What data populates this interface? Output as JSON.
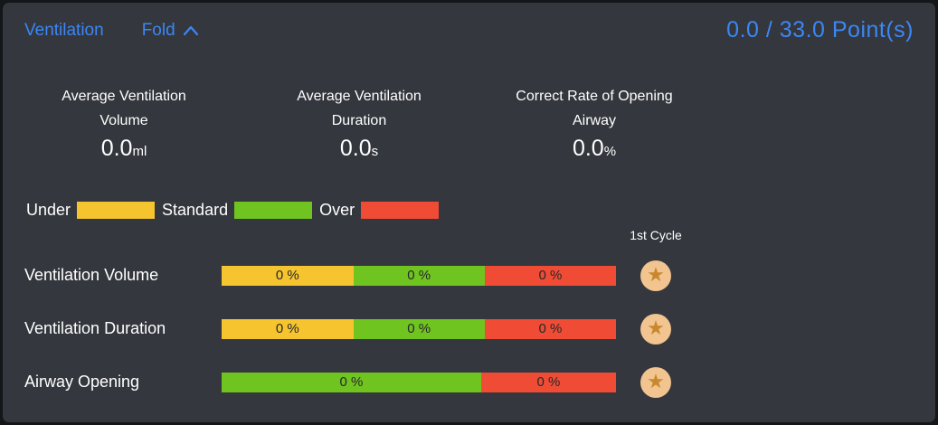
{
  "colors": {
    "accent_blue": "#3B87F5",
    "panel_background": "#34373D",
    "under_yellow": "#F5C42F",
    "standard_green": "#70C41F",
    "over_red": "#F04C35",
    "badge_circle": "#F2C48F",
    "badge_star": "#C8882E"
  },
  "header": {
    "title": "Ventilation",
    "fold_label": "Fold",
    "points": "0.0 / 33.0 Point(s)"
  },
  "stats": [
    {
      "label_line1": "Average Ventilation",
      "label_line2": "Volume",
      "value": "0.0",
      "unit": "ml"
    },
    {
      "label_line1": "Average Ventilation",
      "label_line2": "Duration",
      "value": "0.0",
      "unit": "s"
    },
    {
      "label_line1": "Correct Rate of Opening",
      "label_line2": "Airway",
      "value": "0.0",
      "unit": "%"
    }
  ],
  "legend": [
    {
      "label": "Under",
      "color": "#F5C42F"
    },
    {
      "label": "Standard",
      "color": "#70C41F"
    },
    {
      "label": "Over",
      "color": "#F04C35"
    }
  ],
  "cycle_header": "1st Cycle",
  "rows": [
    {
      "label": "Ventilation Volume",
      "segments": [
        {
          "zone": "under",
          "label": "0 %",
          "color": "#F5C42F",
          "width_pct": 33.4
        },
        {
          "zone": "standard",
          "label": "0 %",
          "color": "#70C41F",
          "width_pct": 33.3
        },
        {
          "zone": "over",
          "label": "0 %",
          "color": "#F04C35",
          "width_pct": 33.3
        }
      ]
    },
    {
      "label": "Ventilation Duration",
      "segments": [
        {
          "zone": "under",
          "label": "0 %",
          "color": "#F5C42F",
          "width_pct": 33.4
        },
        {
          "zone": "standard",
          "label": "0 %",
          "color": "#70C41F",
          "width_pct": 33.3
        },
        {
          "zone": "over",
          "label": "0 %",
          "color": "#F04C35",
          "width_pct": 33.3
        }
      ]
    },
    {
      "label": "Airway Opening",
      "segments": [
        {
          "zone": "standard",
          "label": "0 %",
          "color": "#70C41F",
          "width_pct": 65.8
        },
        {
          "zone": "over",
          "label": "0 %",
          "color": "#F04C35",
          "width_pct": 34.2
        }
      ]
    }
  ],
  "chart_data": {
    "type": "bar",
    "title": "Ventilation performance distribution (stacked horizontal bars)",
    "categories": [
      "Ventilation Volume",
      "Ventilation Duration",
      "Airway Opening"
    ],
    "series": [
      {
        "name": "Under",
        "values": [
          0,
          0,
          null
        ]
      },
      {
        "name": "Standard",
        "values": [
          0,
          0,
          0
        ]
      },
      {
        "name": "Over",
        "values": [
          0,
          0,
          0
        ]
      }
    ],
    "value_unit": "%",
    "legend_position": "top-left",
    "grid": false
  }
}
